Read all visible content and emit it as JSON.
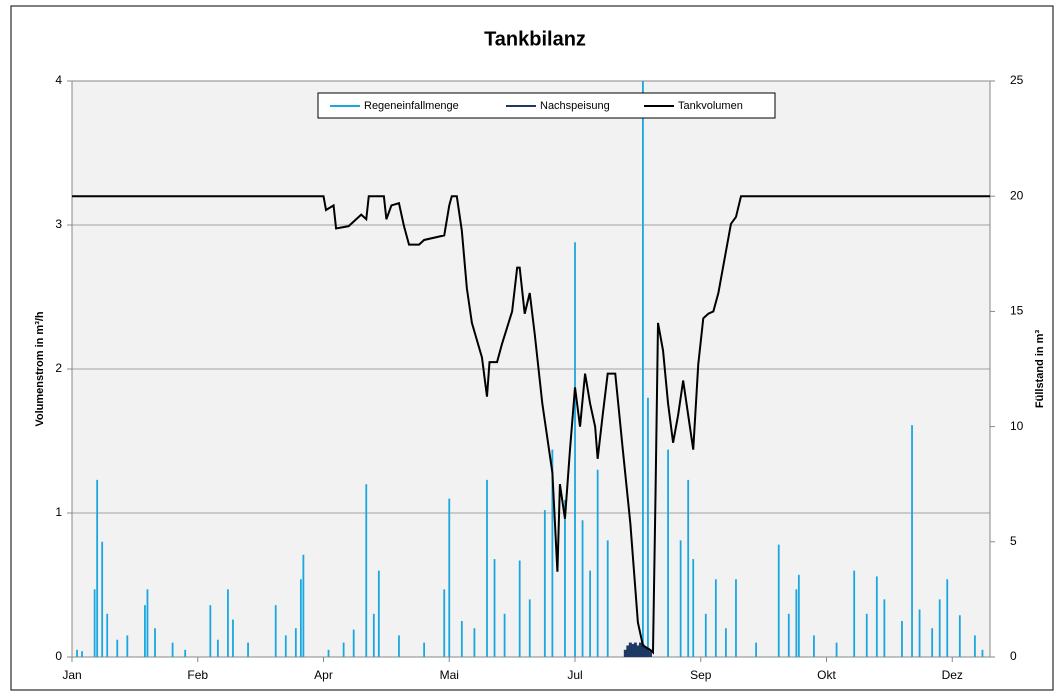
{
  "chart_data": {
    "type": "line",
    "title": "Tankbilanz",
    "y_label": "Volumenstrom in m³/h",
    "y2_label": "Füllstand in m³",
    "xlim": [
      0,
      365
    ],
    "xticks": [
      {
        "value": 0,
        "label": "Jan"
      },
      {
        "value": 50,
        "label": "Feb"
      },
      {
        "value": 100,
        "label": "Apr"
      },
      {
        "value": 150,
        "label": "Mai"
      },
      {
        "value": 200,
        "label": "Jul"
      },
      {
        "value": 250,
        "label": "Sep"
      },
      {
        "value": 300,
        "label": "Okt"
      },
      {
        "value": 350,
        "label": "Dez"
      }
    ],
    "ylim": [
      0,
      4
    ],
    "yticks": [
      0,
      1,
      2,
      3,
      4
    ],
    "y2lim": [
      0,
      25
    ],
    "y2ticks": [
      0,
      5,
      10,
      15,
      20,
      25
    ],
    "grid": true,
    "legend": "top",
    "series": [
      {
        "name": "Regeneinfallmenge",
        "color": "#1aa7e0",
        "style": "spikes",
        "x": [
          2,
          4,
          9,
          10,
          12,
          14,
          18,
          22,
          29,
          30,
          33,
          40,
          45,
          55,
          58,
          62,
          64,
          70,
          81,
          85,
          89,
          91,
          92,
          102,
          108,
          112,
          117,
          120,
          122,
          130,
          140,
          148,
          150,
          155,
          160,
          165,
          168,
          172,
          178,
          182,
          188,
          191,
          196,
          200,
          203,
          206,
          209,
          213,
          227,
          229,
          237,
          242,
          245,
          247,
          252,
          256,
          260,
          264,
          272,
          281,
          285,
          288,
          289,
          295,
          304,
          311,
          316,
          320,
          323,
          330,
          334,
          337,
          342,
          345,
          348,
          353,
          359,
          362
        ],
        "values": [
          0.05,
          0.04,
          0.47,
          1.23,
          0.8,
          0.3,
          0.12,
          0.15,
          0.36,
          0.47,
          0.2,
          0.1,
          0.05,
          0.36,
          0.12,
          0.47,
          0.26,
          0.1,
          0.36,
          0.15,
          0.2,
          0.54,
          0.71,
          0.05,
          0.1,
          0.19,
          1.2,
          0.3,
          0.6,
          0.15,
          0.1,
          0.47,
          1.1,
          0.25,
          0.2,
          1.23,
          0.68,
          0.3,
          0.67,
          0.4,
          1.02,
          1.44,
          1.09,
          2.88,
          0.95,
          0.6,
          1.3,
          0.81,
          4,
          1.8,
          1.44,
          0.81,
          1.23,
          0.68,
          0.3,
          0.54,
          0.2,
          0.54,
          0.1,
          0.78,
          0.3,
          0.47,
          0.57,
          0.15,
          0.1,
          0.6,
          0.3,
          0.56,
          0.4,
          0.25,
          1.61,
          0.33,
          0.2,
          0.4,
          0.54,
          0.29,
          0.15,
          0.05
        ]
      },
      {
        "name": "Nachspeisung",
        "color": "#1f3864",
        "style": "spikes",
        "x": [
          220,
          221,
          222,
          223,
          224,
          225,
          226,
          227,
          228,
          229,
          230
        ],
        "values": [
          0.05,
          0.08,
          0.1,
          0.09,
          0.1,
          0.08,
          0.1,
          0.09,
          0.07,
          0.06,
          0.04
        ]
      },
      {
        "name": "Tankvolumen",
        "color": "#000000",
        "axis": "y2",
        "x": [
          0,
          100,
          101,
          104,
          105,
          110,
          115,
          117,
          118,
          124,
          125,
          127,
          130,
          132,
          134,
          138,
          140,
          148,
          150,
          151,
          153,
          155,
          157,
          159,
          163,
          165,
          166,
          169,
          171,
          175,
          177,
          178,
          180,
          182,
          184,
          187,
          191,
          193,
          194,
          196,
          198,
          200,
          202,
          204,
          206,
          208,
          209,
          211,
          213,
          216,
          219,
          222,
          225,
          227,
          230,
          231,
          232,
          233,
          235,
          237,
          239,
          241,
          243,
          245,
          247,
          249,
          251,
          253,
          255,
          257,
          259,
          262,
          264,
          266,
          365
        ],
        "values": [
          20,
          20,
          19.4,
          19.6,
          18.6,
          18.7,
          19.2,
          19,
          20,
          20,
          19,
          19.6,
          19.7,
          18.7,
          17.9,
          17.9,
          18.1,
          18.3,
          19.6,
          20,
          20,
          18.5,
          16,
          14.5,
          13,
          11.3,
          12.8,
          12.8,
          13.6,
          15,
          16.9,
          16.9,
          14.9,
          15.8,
          14,
          11,
          8,
          3.7,
          7.5,
          6,
          9,
          11.7,
          10,
          12.3,
          11,
          10,
          8.6,
          10.5,
          12.3,
          12.3,
          9,
          5.8,
          1.5,
          0.5,
          0.3,
          0.2,
          7,
          14.5,
          13.3,
          11,
          9.3,
          10.5,
          12,
          10.5,
          9,
          12.7,
          14.7,
          14.9,
          15,
          15.8,
          17,
          18.8,
          19.1,
          20,
          20
        ]
      }
    ]
  }
}
